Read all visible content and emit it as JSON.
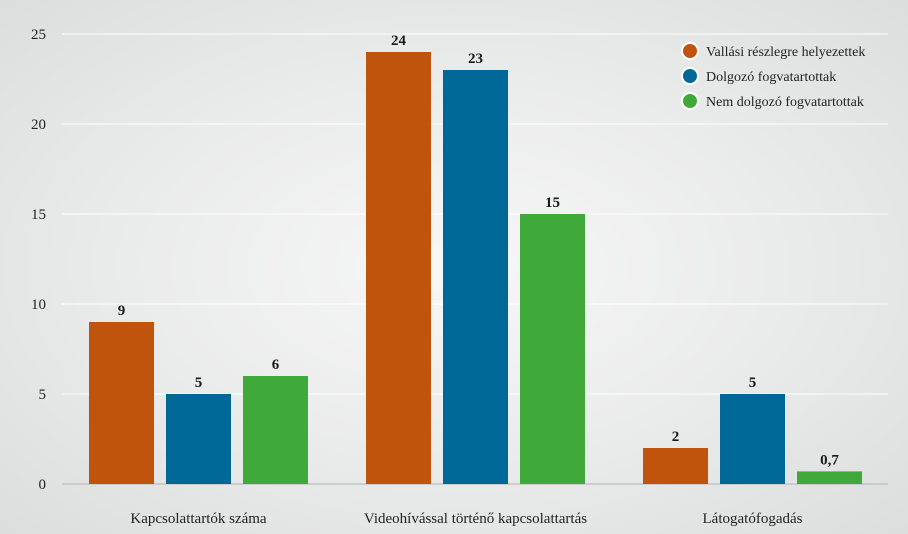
{
  "chart_data": {
    "type": "bar",
    "categories": [
      "Kapcsolattartók száma",
      "Videohívással történő kapcsolattartás",
      "Látogatófogadás"
    ],
    "series": [
      {
        "name": "Vallási részlegre helyezettek",
        "values": [
          9,
          24,
          2
        ],
        "labels": [
          "9",
          "24",
          "2"
        ],
        "color": "#c0540c"
      },
      {
        "name": "Dolgozó fogvatartottak",
        "values": [
          5,
          23,
          5
        ],
        "labels": [
          "5",
          "23",
          "5"
        ],
        "color": "#006897"
      },
      {
        "name": "Nem dolgozó fogvatartottak",
        "values": [
          6,
          15,
          0.7
        ],
        "labels": [
          "6",
          "15",
          "0,7"
        ],
        "color": "#3faa3a"
      }
    ],
    "y_ticks": [
      0,
      5,
      10,
      15,
      20,
      25
    ],
    "ylim": [
      0,
      25
    ],
    "grid": true,
    "legend_position": "top-right"
  }
}
